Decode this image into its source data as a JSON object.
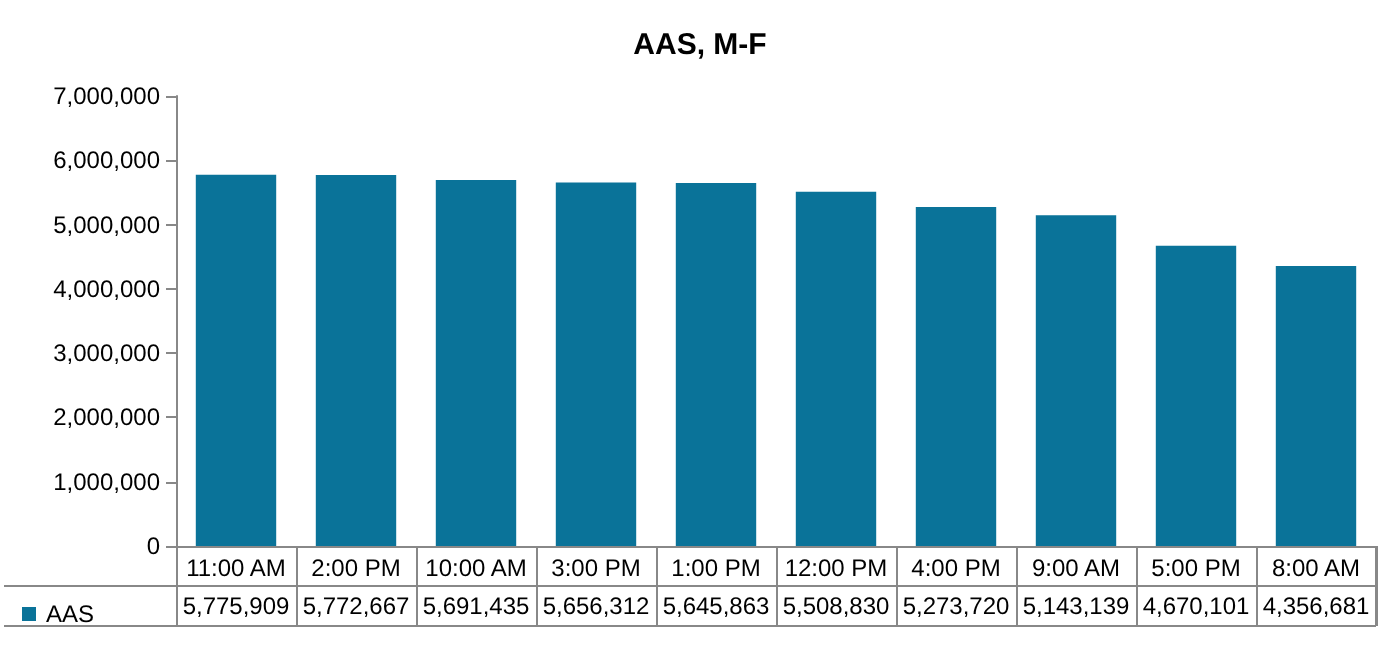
{
  "chart_data": {
    "type": "bar",
    "title": "AAS, M-F",
    "categories": [
      "11:00 AM",
      "2:00 PM",
      "10:00 AM",
      "3:00 PM",
      "1:00 PM",
      "12:00 PM",
      "4:00 PM",
      "9:00 AM",
      "5:00 PM",
      "8:00 AM"
    ],
    "series": [
      {
        "name": "AAS",
        "color": "#0a7399",
        "values": [
          5775909,
          5772667,
          5691435,
          5656312,
          5645863,
          5508830,
          5273720,
          5143139,
          4670101,
          4356681
        ],
        "value_labels": [
          "5,775,909",
          "5,772,667",
          "5,691,435",
          "5,656,312",
          "5,645,863",
          "5,508,830",
          "5,273,720",
          "5,143,139",
          "4,670,101",
          "4,356,681"
        ]
      }
    ],
    "ylim": [
      0,
      7000000
    ],
    "yticks": [
      0,
      {
        "value": 1000000,
        "label": "1,000,000"
      },
      {
        "value": 2000000,
        "label": "2,000,000"
      },
      {
        "value": 3000000,
        "label": "3,000,000"
      },
      {
        "value": 4000000,
        "label": "4,000,000"
      },
      {
        "value": 5000000,
        "label": "5,000,000"
      },
      {
        "value": 6000000,
        "label": "6,000,000"
      },
      {
        "value": 7000000,
        "label": "7,000,000"
      }
    ],
    "grid": false,
    "legend": "bottom left"
  }
}
